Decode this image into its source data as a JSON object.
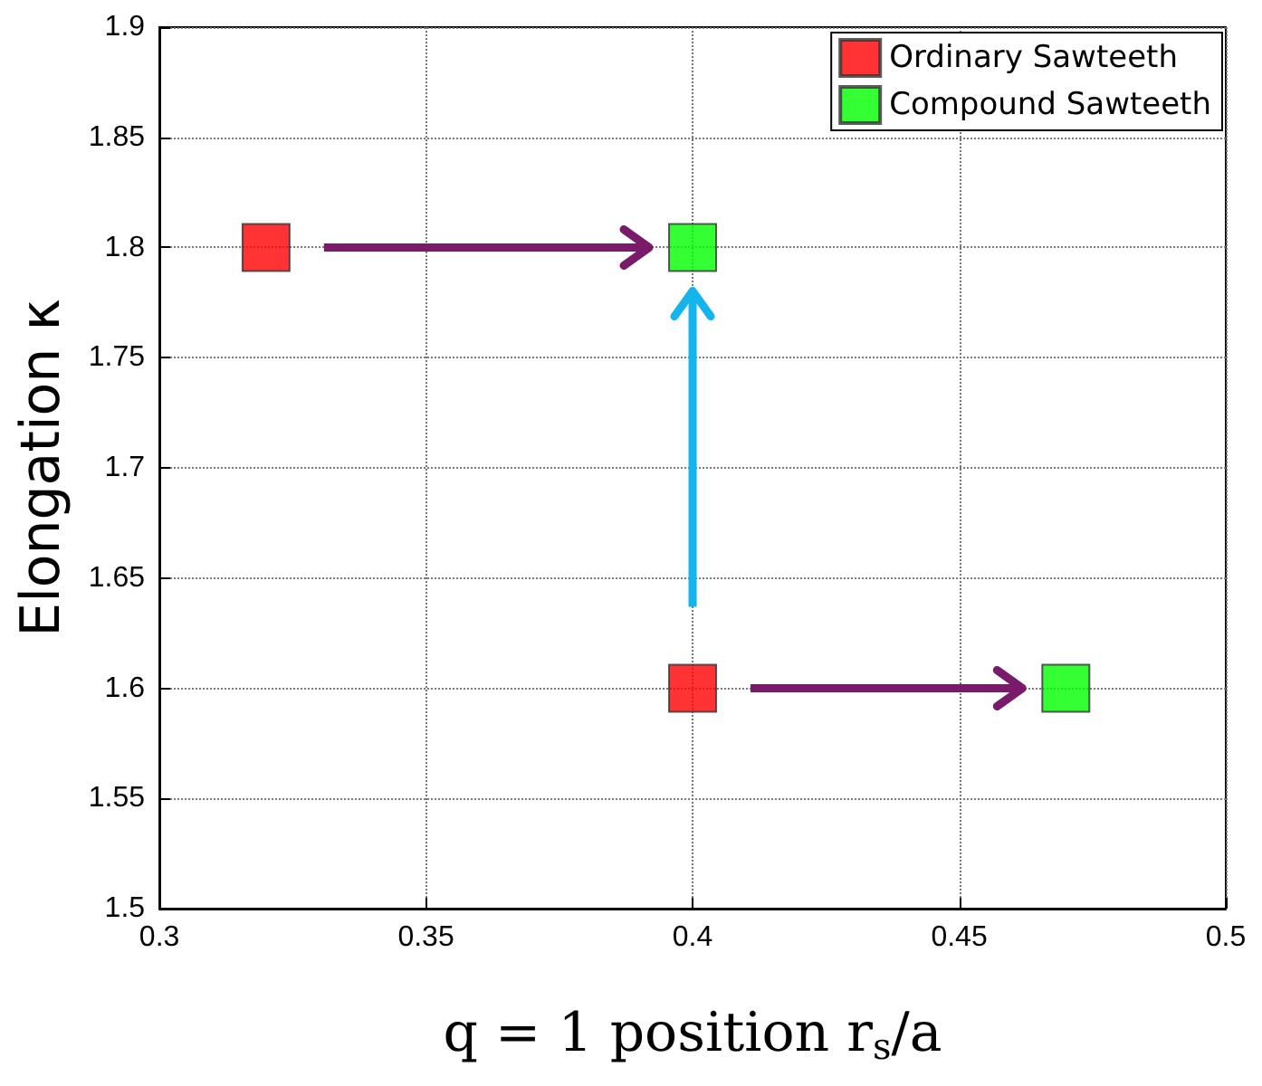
{
  "chart_data": {
    "type": "scatter",
    "xlabel": "q = 1 position r$_{s}$/a",
    "ylabel": "Elongation κ",
    "series": [
      {
        "name": "Ordinary Sawteeth",
        "color": "#ff0000",
        "x": [
          0.32,
          0.4
        ],
        "values": [
          1.8,
          1.6
        ]
      },
      {
        "name": "Compound Sawteeth",
        "color": "#00ff00",
        "x": [
          0.4,
          0.47
        ],
        "values": [
          1.8,
          1.6
        ]
      }
    ],
    "xlim": [
      0.3,
      0.5
    ],
    "xticks": [
      0.3,
      0.35,
      0.4,
      0.45,
      0.5
    ],
    "ylim": [
      1.5,
      1.9
    ],
    "yticks": [
      1.5,
      1.55,
      1.6,
      1.65,
      1.7,
      1.75,
      1.8,
      1.85,
      1.9
    ],
    "grid": true,
    "legend": "top right",
    "marker": "square"
  }
}
